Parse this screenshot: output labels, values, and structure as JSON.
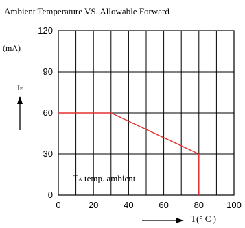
{
  "chart_data": {
    "type": "line",
    "title": "Ambient Temperature VS. Allowable Forward",
    "ylabel_unit": "(mA)",
    "ylabel_symbol": "I",
    "ylabel_subscript": "F",
    "xlabel": "T(° C )",
    "annotation_main": "T",
    "annotation_subscript": "A",
    "annotation_text": " temp. ambient",
    "xlim": [
      0,
      100
    ],
    "ylim": [
      0,
      120
    ],
    "x_ticks": [
      0,
      20,
      40,
      60,
      80,
      100
    ],
    "y_ticks": [
      0,
      30,
      60,
      90,
      120
    ],
    "grid": true,
    "series": [
      {
        "color": "#e53030",
        "x": [
          0,
          30,
          80,
          80
        ],
        "y": [
          60,
          60,
          30,
          0
        ]
      }
    ]
  }
}
